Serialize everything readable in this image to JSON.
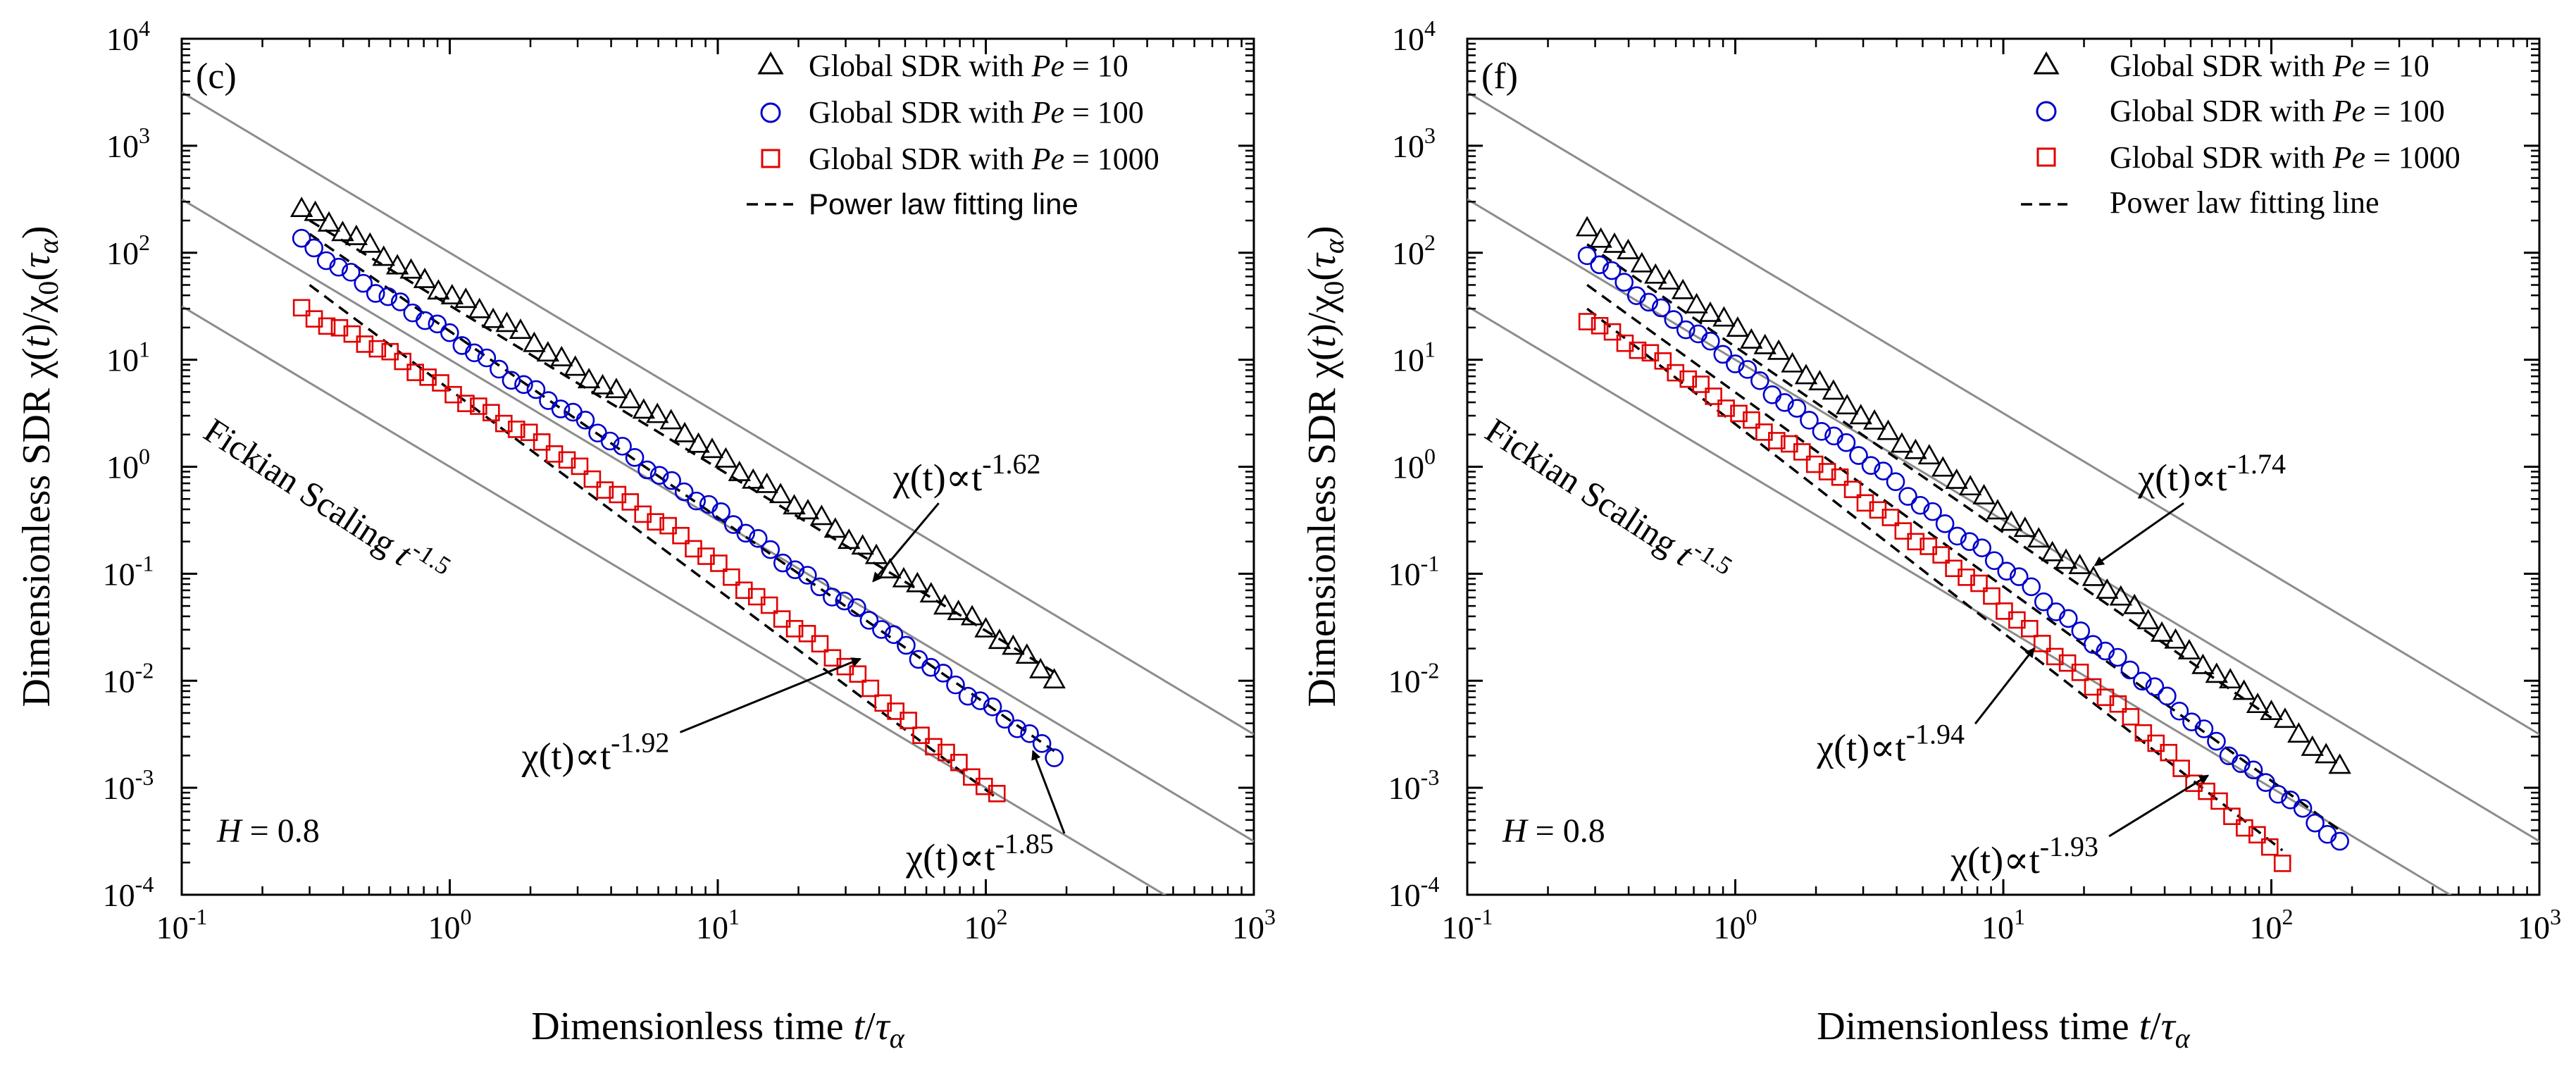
{
  "figure": {
    "ylabel": {
      "pre": "Dimensionless SDR χ(",
      "t1": "t",
      "mid": ")/χ",
      "sub0": "0",
      "open": "(",
      "tau": "τ",
      "alpha": "α",
      "close": ")"
    },
    "xlabel": {
      "pre": "Dimensionless time ",
      "t": "t",
      "slash": "/",
      "tau": "τ",
      "alpha": "α"
    },
    "h_label": {
      "var": "H",
      "val": " = 0.8"
    },
    "fickian": {
      "text": "Fickian Scaling ",
      "t": "t",
      "exp": "-1.5"
    },
    "xticks": [
      {
        "base": "10",
        "exp": "-1"
      },
      {
        "base": "10",
        "exp": "0"
      },
      {
        "base": "10",
        "exp": "1"
      },
      {
        "base": "10",
        "exp": "2"
      },
      {
        "base": "10",
        "exp": "3"
      }
    ],
    "yticks": [
      {
        "base": "10",
        "exp": "-4"
      },
      {
        "base": "10",
        "exp": "-3"
      },
      {
        "base": "10",
        "exp": "-2"
      },
      {
        "base": "10",
        "exp": "-1"
      },
      {
        "base": "10",
        "exp": "0"
      },
      {
        "base": "10",
        "exp": "1"
      },
      {
        "base": "10",
        "exp": "2"
      },
      {
        "base": "10",
        "exp": "3"
      },
      {
        "base": "10",
        "exp": "4"
      }
    ],
    "legend": [
      {
        "pre": "Global SDR with ",
        "var": "Pe",
        "val": " = 10"
      },
      {
        "pre": "Global SDR with ",
        "var": "Pe",
        "val": " = 100"
      },
      {
        "pre": "Global SDR with ",
        "var": "Pe",
        "val": " = 1000"
      },
      {
        "text": "Power law fitting line"
      }
    ],
    "colors": {
      "pe10": "#000000",
      "pe100": "#0000cc",
      "pe1000": "#e00000",
      "fickian": "#8c8c8c",
      "fit": "#000000"
    }
  },
  "chart_data": [
    {
      "type": "scatter",
      "panel": "(c)",
      "xscale": "log",
      "yscale": "log",
      "xlim": [
        0.1,
        1000
      ],
      "ylim": [
        0.0001,
        10000
      ],
      "fickian_slope": -1.5,
      "fickian_lines_at_t1": [
        100,
        10,
        1
      ],
      "series": [
        {
          "name": "Global SDR with Pe = 10",
          "marker": "triangle",
          "t_range": [
            0.28,
            180
          ],
          "y_start": 260,
          "y_end": 0.011,
          "points": 56
        },
        {
          "name": "Global SDR with Pe = 100",
          "marker": "circle",
          "t_range": [
            0.28,
            180
          ],
          "y_start": 125,
          "y_end": 0.002,
          "points": 62
        },
        {
          "name": "Global SDR with Pe = 1000",
          "marker": "square",
          "t_range": [
            0.28,
            110
          ],
          "y_start": 30,
          "y_end": 0.0008,
          "points": 56
        }
      ],
      "fits": [
        {
          "series": "Global SDR with Pe = 10",
          "t_range": [
            0.3,
            180
          ],
          "y_start": 200,
          "y_end": 0.012
        },
        {
          "series": "Global SDR with Pe = 100",
          "t_range": [
            0.3,
            180
          ],
          "y_start": 150,
          "y_end": 0.0022
        },
        {
          "series": "Global SDR with Pe = 1000",
          "t_range": [
            0.3,
            110
          ],
          "y_start": 50,
          "y_end": 0.0008
        }
      ],
      "annotations": [
        {
          "text": "χ(t)∝t",
          "exp": "-1.62",
          "label_pos": [
            85,
            0.6
          ],
          "arrow_to": [
            38,
            0.085
          ]
        },
        {
          "text": "χ(t)∝t",
          "exp": "-1.92",
          "label_pos": [
            3.5,
            0.0015
          ],
          "arrow_to": [
            34,
            0.016
          ]
        },
        {
          "text": "χ(t)∝t",
          "exp": "-1.85",
          "label_pos": [
            95,
            0.00017
          ],
          "arrow_to": [
            150,
            0.0022
          ]
        }
      ]
    },
    {
      "type": "scatter",
      "panel": "(f)",
      "xscale": "log",
      "yscale": "log",
      "xlim": [
        0.1,
        1000
      ],
      "ylim": [
        0.0001,
        10000
      ],
      "fickian_slope": -1.5,
      "fickian_lines_at_t1": [
        100,
        10,
        1
      ],
      "series": [
        {
          "name": "Global SDR with Pe = 10",
          "marker": "triangle",
          "t_range": [
            0.28,
            180
          ],
          "y_start": 170,
          "y_end": 0.0016,
          "points": 56
        },
        {
          "name": "Global SDR with Pe = 100",
          "marker": "circle",
          "t_range": [
            0.28,
            180
          ],
          "y_start": 95,
          "y_end": 0.0003,
          "points": 62
        },
        {
          "name": "Global SDR with Pe = 1000",
          "marker": "square",
          "t_range": [
            0.28,
            110
          ],
          "y_start": 25,
          "y_end": 0.0002,
          "points": 56
        }
      ],
      "fits": [
        {
          "series": "Global SDR with Pe = 10",
          "t_range": [
            0.28,
            100
          ],
          "y_start": 120,
          "y_end": 0.0045
        },
        {
          "series": "Global SDR with Pe = 100",
          "t_range": [
            0.28,
            180
          ],
          "y_start": 50,
          "y_end": 0.0004
        },
        {
          "series": "Global SDR with Pe = 1000",
          "t_range": [
            0.28,
            110
          ],
          "y_start": 30,
          "y_end": 0.00026
        }
      ],
      "annotations": [
        {
          "text": "χ(t)∝t",
          "exp": "-1.74",
          "label_pos": [
            60,
            0.6
          ],
          "arrow_to": [
            22,
            0.12
          ]
        },
        {
          "text": "χ(t)∝t",
          "exp": "-1.94",
          "label_pos": [
            3.8,
            0.0018
          ],
          "arrow_to": [
            13,
            0.02
          ]
        },
        {
          "text": "χ(t)∝t",
          "exp": "-1.93",
          "label_pos": [
            12,
            0.00016
          ],
          "arrow_to": [
            58,
            0.0013
          ]
        }
      ]
    }
  ]
}
